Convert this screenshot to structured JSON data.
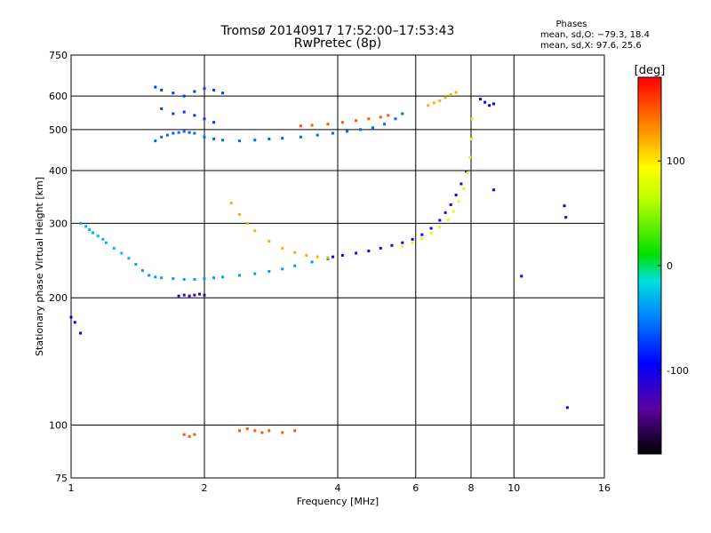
{
  "chart_data": {
    "type": "scatter",
    "title": "Tromsø 20140917 17:52:00–17:53:43",
    "subtitle": "RwPretec (8p)",
    "xlabel": "Frequency [MHz]",
    "ylabel": "Stationary phase Virtual Height [km]",
    "x_scale": "log",
    "y_scale": "log",
    "xlim": [
      1,
      16
    ],
    "ylim": [
      75,
      750
    ],
    "x_ticks": [
      1,
      2,
      4,
      6,
      8,
      10,
      16
    ],
    "y_ticks": [
      75,
      100,
      200,
      300,
      400,
      500,
      600,
      750
    ],
    "grid": true,
    "phases_box": {
      "heading": "Phases",
      "line_o": "mean, sd,O: −79.3, 18.4",
      "line_x": "mean, sd,X:  97.6, 25.6"
    },
    "colorbar": {
      "label": "[deg]",
      "range": [
        -180,
        180
      ],
      "ticks": [
        100,
        0,
        -100
      ],
      "colormap": "rainbow",
      "position": "right"
    },
    "series": [
      {
        "phase_deg": -40,
        "x": [
          1.4,
          1.45,
          1.5,
          1.55,
          1.6,
          1.7,
          1.8,
          1.9,
          2.0,
          2.1,
          2.2,
          2.4,
          2.6,
          2.8,
          3.0,
          3.2,
          3.5,
          3.8
        ],
        "y": [
          240,
          232,
          226,
          224,
          223,
          222,
          221,
          221,
          222,
          223,
          224,
          226,
          228,
          231,
          234,
          238,
          243,
          247
        ]
      },
      {
        "phase_deg": -30,
        "x": [
          1.05,
          1.08,
          1.1,
          1.12,
          1.15,
          1.18,
          1.2,
          1.25,
          1.3,
          1.35
        ],
        "y": [
          300,
          295,
          290,
          285,
          280,
          275,
          270,
          262,
          255,
          248
        ]
      },
      {
        "phase_deg": -60,
        "x": [
          1.55,
          1.6,
          1.65,
          1.7,
          1.75,
          1.8,
          1.85,
          1.9,
          2.0,
          2.1,
          2.2,
          2.4,
          2.6,
          2.8,
          3.0,
          3.3,
          3.6,
          3.9,
          4.2,
          4.5,
          4.8,
          5.1,
          5.4,
          5.6
        ],
        "y": [
          470,
          480,
          485,
          490,
          492,
          495,
          492,
          490,
          480,
          475,
          472,
          470,
          472,
          475,
          477,
          480,
          485,
          490,
          495,
          500,
          505,
          515,
          530,
          545
        ]
      },
      {
        "phase_deg": -75,
        "x": [
          1.55,
          1.6,
          1.7,
          1.8,
          1.9,
          2.0,
          2.1,
          2.2,
          1.6,
          1.7,
          1.8,
          1.9,
          2.0,
          2.1
        ],
        "y": [
          630,
          620,
          610,
          600,
          615,
          625,
          620,
          610,
          560,
          545,
          550,
          540,
          530,
          520
        ]
      },
      {
        "phase_deg": 120,
        "x": [
          2.3,
          2.4,
          2.5,
          2.6,
          2.8,
          3.0,
          3.2,
          3.4,
          3.6,
          3.8
        ],
        "y": [
          335,
          315,
          300,
          288,
          272,
          262,
          256,
          252,
          250,
          249
        ]
      },
      {
        "phase_deg": 150,
        "x": [
          3.3,
          3.5,
          3.8,
          4.1,
          4.4,
          4.7,
          5.0,
          5.2
        ],
        "y": [
          510,
          512,
          515,
          520,
          525,
          530,
          535,
          540
        ]
      },
      {
        "phase_deg": -110,
        "x": [
          3.9,
          4.1,
          4.4,
          4.7,
          5.0,
          5.3,
          5.6,
          5.9,
          6.2,
          6.5,
          6.8,
          7.0,
          7.2,
          7.4,
          7.6,
          7.8
        ],
        "y": [
          250,
          252,
          255,
          258,
          262,
          266,
          270,
          275,
          282,
          292,
          305,
          318,
          332,
          350,
          372,
          398
        ]
      },
      {
        "phase_deg": 80,
        "x": [
          5.6,
          5.9,
          6.2,
          6.5,
          6.8,
          7.1,
          7.3,
          7.5,
          7.7,
          7.85,
          7.95,
          8.02,
          8.05
        ],
        "y": [
          265,
          270,
          276,
          284,
          294,
          306,
          320,
          338,
          362,
          395,
          430,
          475,
          530
        ]
      },
      {
        "phase_deg": -120,
        "x": [
          1.75,
          1.8,
          1.85,
          1.9,
          1.95,
          2.0
        ],
        "y": [
          202,
          203,
          202,
          203,
          204,
          203
        ]
      },
      {
        "phase_deg": 150,
        "x": [
          1.8,
          1.85,
          1.9,
          2.4,
          2.5,
          2.6,
          2.7,
          2.8,
          3.0,
          3.2
        ],
        "y": [
          95,
          94,
          95,
          97,
          98,
          97,
          96,
          97,
          96,
          97
        ]
      },
      {
        "phase_deg": 120,
        "x": [
          6.4,
          6.6,
          6.8,
          7.0,
          7.2,
          7.4
        ],
        "y": [
          570,
          578,
          585,
          595,
          605,
          612
        ]
      },
      {
        "phase_deg": -100,
        "x": [
          8.4,
          8.6,
          8.8,
          9.0
        ],
        "y": [
          590,
          580,
          570,
          575
        ]
      },
      {
        "phase_deg": -95,
        "x": [
          1.0,
          1.02,
          1.05,
          13.0,
          13.1,
          13.2,
          10.4,
          9.0
        ],
        "y": [
          180,
          175,
          165,
          330,
          310,
          110,
          225,
          360
        ]
      }
    ]
  }
}
